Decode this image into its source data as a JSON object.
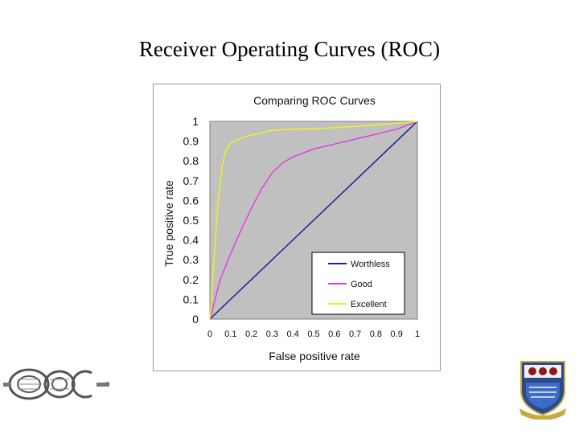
{
  "slide": {
    "title": "Receiver Operating Curves (ROC)"
  },
  "chart_data": {
    "type": "line",
    "title": "Comparing ROC Curves",
    "xlabel": "False positive rate",
    "ylabel": "True positive rate",
    "xlim": [
      0,
      1
    ],
    "ylim": [
      0,
      1
    ],
    "x_ticks": [
      "0",
      "0.1",
      "0.2",
      "0.3",
      "0.4",
      "0.5",
      "0.6",
      "0.7",
      "0.8",
      "0.9",
      "1"
    ],
    "y_ticks": [
      "0",
      "0.1",
      "0.2",
      "0.3",
      "0.4",
      "0.5",
      "0.6",
      "0.7",
      "0.8",
      "0.9",
      "1"
    ],
    "grid": false,
    "plot_background": "#c0c0c0",
    "legend_position": "bottom-right",
    "series": [
      {
        "name": "Worthless",
        "color": "#1f1f8f",
        "points": [
          [
            0,
            0
          ],
          [
            1,
            1
          ]
        ]
      },
      {
        "name": "Good",
        "color": "#e040e0",
        "points": [
          [
            0,
            0
          ],
          [
            0.05,
            0.2
          ],
          [
            0.1,
            0.33
          ],
          [
            0.15,
            0.45
          ],
          [
            0.2,
            0.56
          ],
          [
            0.25,
            0.66
          ],
          [
            0.3,
            0.74
          ],
          [
            0.35,
            0.79
          ],
          [
            0.4,
            0.82
          ],
          [
            0.5,
            0.86
          ],
          [
            0.6,
            0.885
          ],
          [
            0.7,
            0.91
          ],
          [
            0.8,
            0.935
          ],
          [
            0.9,
            0.96
          ],
          [
            1,
            1
          ]
        ]
      },
      {
        "name": "Excellent",
        "color": "#f0f020",
        "points": [
          [
            0,
            0
          ],
          [
            0.02,
            0.3
          ],
          [
            0.04,
            0.6
          ],
          [
            0.06,
            0.78
          ],
          [
            0.08,
            0.86
          ],
          [
            0.1,
            0.89
          ],
          [
            0.15,
            0.915
          ],
          [
            0.2,
            0.93
          ],
          [
            0.3,
            0.955
          ],
          [
            0.4,
            0.96
          ],
          [
            0.5,
            0.962
          ],
          [
            0.6,
            0.968
          ],
          [
            0.7,
            0.975
          ],
          [
            0.8,
            0.982
          ],
          [
            0.9,
            0.99
          ],
          [
            1,
            1
          ]
        ]
      }
    ]
  }
}
